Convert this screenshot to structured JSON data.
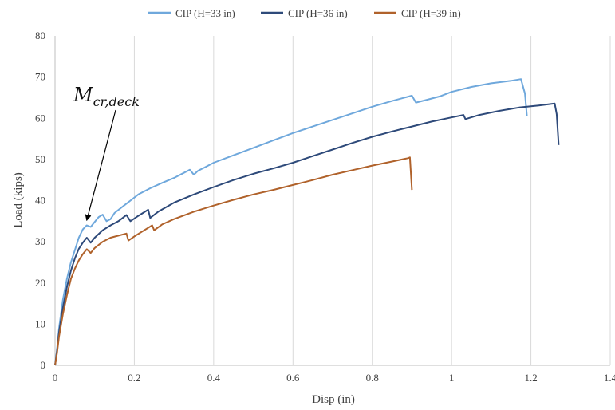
{
  "chart_data": {
    "type": "line",
    "xlabel": "Disp (in)",
    "ylabel": "Load (kips)",
    "xlim": [
      0,
      1.4
    ],
    "ylim": [
      0,
      80
    ],
    "xticks": [
      "0",
      "0.2",
      "0.4",
      "0.6",
      "0.8",
      "1",
      "1.2",
      "1.4"
    ],
    "yticks": [
      "0",
      "10",
      "20",
      "30",
      "40",
      "50",
      "60",
      "70",
      "80"
    ],
    "grid": "vertical",
    "legend_position": "top",
    "annotation": {
      "text_main": "M",
      "text_sub": "cr,deck",
      "points_to": [
        0.08,
        36
      ]
    },
    "series": [
      {
        "name": "CIP (H=33 in)",
        "color": "#6fa8dc",
        "points": [
          [
            0,
            0
          ],
          [
            0.005,
            4
          ],
          [
            0.01,
            9
          ],
          [
            0.02,
            16
          ],
          [
            0.03,
            21
          ],
          [
            0.04,
            25
          ],
          [
            0.05,
            28
          ],
          [
            0.06,
            31
          ],
          [
            0.07,
            33
          ],
          [
            0.08,
            34
          ],
          [
            0.09,
            33.6
          ],
          [
            0.1,
            34.8
          ],
          [
            0.11,
            36
          ],
          [
            0.12,
            36.6
          ],
          [
            0.13,
            35
          ],
          [
            0.14,
            35.5
          ],
          [
            0.15,
            37
          ],
          [
            0.17,
            38.5
          ],
          [
            0.19,
            40
          ],
          [
            0.21,
            41.5
          ],
          [
            0.24,
            43
          ],
          [
            0.27,
            44.3
          ],
          [
            0.3,
            45.5
          ],
          [
            0.34,
            47.5
          ],
          [
            0.35,
            46.3
          ],
          [
            0.36,
            47.2
          ],
          [
            0.4,
            49.2
          ],
          [
            0.45,
            51
          ],
          [
            0.5,
            52.8
          ],
          [
            0.55,
            54.6
          ],
          [
            0.6,
            56.4
          ],
          [
            0.65,
            58
          ],
          [
            0.7,
            59.6
          ],
          [
            0.75,
            61.2
          ],
          [
            0.8,
            62.8
          ],
          [
            0.85,
            64.2
          ],
          [
            0.9,
            65.5
          ],
          [
            0.91,
            63.8
          ],
          [
            0.93,
            64.3
          ],
          [
            0.97,
            65.3
          ],
          [
            1.0,
            66.4
          ],
          [
            1.05,
            67.6
          ],
          [
            1.1,
            68.5
          ],
          [
            1.15,
            69.1
          ],
          [
            1.175,
            69.5
          ],
          [
            1.185,
            66
          ],
          [
            1.19,
            60.5
          ]
        ]
      },
      {
        "name": "CIP (H=36 in)",
        "color": "#2e4a7a",
        "points": [
          [
            0,
            0
          ],
          [
            0.005,
            3.5
          ],
          [
            0.01,
            8
          ],
          [
            0.02,
            14
          ],
          [
            0.03,
            19
          ],
          [
            0.04,
            23
          ],
          [
            0.05,
            26
          ],
          [
            0.06,
            28.3
          ],
          [
            0.07,
            29.8
          ],
          [
            0.08,
            31
          ],
          [
            0.09,
            29.8
          ],
          [
            0.1,
            31
          ],
          [
            0.12,
            32.8
          ],
          [
            0.14,
            34
          ],
          [
            0.16,
            35
          ],
          [
            0.18,
            36.5
          ],
          [
            0.19,
            35
          ],
          [
            0.21,
            36.3
          ],
          [
            0.235,
            37.8
          ],
          [
            0.24,
            35.8
          ],
          [
            0.26,
            37.3
          ],
          [
            0.3,
            39.5
          ],
          [
            0.35,
            41.5
          ],
          [
            0.4,
            43.3
          ],
          [
            0.45,
            45
          ],
          [
            0.5,
            46.5
          ],
          [
            0.55,
            47.8
          ],
          [
            0.6,
            49.2
          ],
          [
            0.65,
            50.8
          ],
          [
            0.7,
            52.4
          ],
          [
            0.75,
            54
          ],
          [
            0.8,
            55.5
          ],
          [
            0.85,
            56.8
          ],
          [
            0.9,
            58
          ],
          [
            0.95,
            59.2
          ],
          [
            1.0,
            60.2
          ],
          [
            1.03,
            60.8
          ],
          [
            1.035,
            59.8
          ],
          [
            1.07,
            60.8
          ],
          [
            1.12,
            61.8
          ],
          [
            1.17,
            62.6
          ],
          [
            1.22,
            63.1
          ],
          [
            1.26,
            63.6
          ],
          [
            1.265,
            61
          ],
          [
            1.27,
            53.5
          ]
        ]
      },
      {
        "name": "CIP (H=39 in)",
        "color": "#b0622b",
        "points": [
          [
            0,
            0
          ],
          [
            0.005,
            3
          ],
          [
            0.01,
            7
          ],
          [
            0.02,
            12.5
          ],
          [
            0.03,
            17
          ],
          [
            0.04,
            21
          ],
          [
            0.05,
            23.5
          ],
          [
            0.06,
            25.5
          ],
          [
            0.07,
            27
          ],
          [
            0.08,
            28.2
          ],
          [
            0.09,
            27.3
          ],
          [
            0.1,
            28.5
          ],
          [
            0.12,
            30
          ],
          [
            0.14,
            31
          ],
          [
            0.16,
            31.5
          ],
          [
            0.18,
            32
          ],
          [
            0.185,
            30.3
          ],
          [
            0.2,
            31.3
          ],
          [
            0.22,
            32.5
          ],
          [
            0.245,
            34
          ],
          [
            0.25,
            32.8
          ],
          [
            0.27,
            34.2
          ],
          [
            0.3,
            35.5
          ],
          [
            0.35,
            37.3
          ],
          [
            0.4,
            38.8
          ],
          [
            0.45,
            40.2
          ],
          [
            0.5,
            41.5
          ],
          [
            0.55,
            42.6
          ],
          [
            0.6,
            43.8
          ],
          [
            0.65,
            45
          ],
          [
            0.7,
            46.3
          ],
          [
            0.75,
            47.4
          ],
          [
            0.8,
            48.5
          ],
          [
            0.85,
            49.5
          ],
          [
            0.89,
            50.3
          ],
          [
            0.895,
            50.5
          ],
          [
            0.9,
            42.6
          ]
        ]
      }
    ]
  }
}
